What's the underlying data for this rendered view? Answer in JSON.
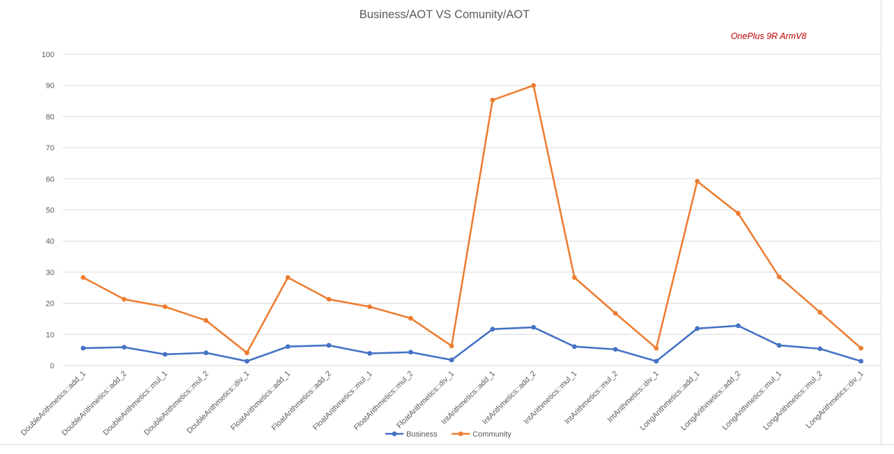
{
  "chart_data": {
    "type": "line",
    "title": "Business/AOT VS Comunity/AOT",
    "annotation": "OnePlus 9R ArmV8",
    "xlabel": "",
    "ylabel": "",
    "ylim": [
      0,
      100
    ],
    "yticks": [
      0,
      10,
      20,
      30,
      40,
      50,
      60,
      70,
      80,
      90,
      100
    ],
    "grid": true,
    "legend": "bottom",
    "categories": [
      "DoubleArithmetics::add_1",
      "DoubleArithmetics::add_2",
      "DoubleArithmetics::mul_1",
      "DoubleArithmetics::mul_2",
      "DoubleArithmetics::div_1",
      "FloatArithmetics::add_1",
      "FloatArithmetics::add_2",
      "FloatArithmetics::mul_1",
      "FloatArithmetics::mul_2",
      "FloatArithmetics::div_1",
      "IntArithmetics::add_1",
      "IntArithmetics::add_2",
      "IntArithmetics::mul_1",
      "IntArithmetics::mul_2",
      "IntArithmetics::div_1",
      "LongArithmetics::add_1",
      "LongArithmetics::add_2",
      "LongArithmetics::mul_1",
      "LongArithmetics::mul_2",
      "LongArithmetics::div_1"
    ],
    "series": [
      {
        "name": "Business",
        "color": "#4472C4",
        "values": [
          5.6,
          5.9,
          3.6,
          4.1,
          1.4,
          6.1,
          6.5,
          3.9,
          4.3,
          1.8,
          11.7,
          12.3,
          6.1,
          5.2,
          1.4,
          11.9,
          12.8,
          6.5,
          5.4,
          1.4
        ]
      },
      {
        "name": "Community",
        "color": "#ED7D31",
        "values": [
          28.3,
          21.3,
          18.9,
          14.5,
          4.1,
          28.3,
          21.3,
          18.9,
          15.2,
          6.3,
          85.3,
          90.0,
          28.3,
          16.8,
          5.6,
          59.2,
          48.9,
          28.5,
          17.1,
          5.6
        ]
      }
    ]
  }
}
